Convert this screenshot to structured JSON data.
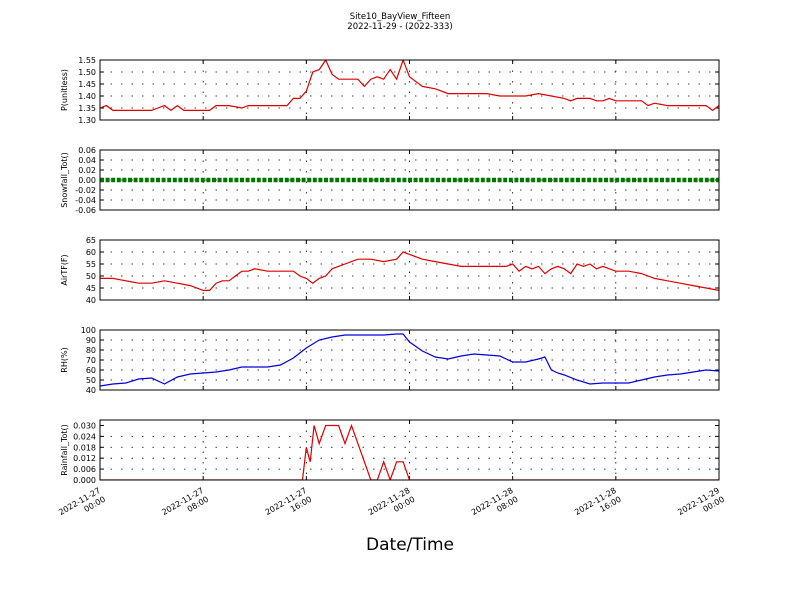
{
  "title": "Site10_BayView_Fifteen",
  "subtitle": "2022-11-29 - (2022-333)",
  "xlabel": "Date/Time",
  "x_ticks": [
    {
      "t": 0,
      "l1": "2022-11-27",
      "l2": "00:00"
    },
    {
      "t": 8,
      "l1": "2022-11-27",
      "l2": "08:00"
    },
    {
      "t": 16,
      "l1": "2022-11-27",
      "l2": "16:00"
    },
    {
      "t": 24,
      "l1": "2022-11-28",
      "l2": "00:00"
    },
    {
      "t": 32,
      "l1": "2022-11-28",
      "l2": "08:00"
    },
    {
      "t": 40,
      "l1": "2022-11-28",
      "l2": "16:00"
    },
    {
      "t": 48,
      "l1": "2022-11-29",
      "l2": "00:00"
    }
  ],
  "chart_data": [
    {
      "type": "line",
      "ylabel": "P(unitless)",
      "ylim": [
        1.3,
        1.55
      ],
      "yticks": [
        "1.30",
        "1.35",
        "1.40",
        "1.45",
        "1.50",
        "1.55"
      ],
      "color": "#dd0000",
      "grid": true,
      "x": [
        0,
        0.5,
        1,
        2,
        3,
        4,
        4.5,
        5,
        5.5,
        6,
        6.5,
        7,
        8,
        8.5,
        9,
        10,
        11,
        11.5,
        12,
        13,
        14,
        14.5,
        15,
        15.5,
        16,
        16.5,
        17,
        17.5,
        18,
        18.5,
        19,
        19.5,
        20,
        20.5,
        21,
        21.5,
        22,
        22.5,
        23,
        23.5,
        24,
        25,
        26,
        27,
        28,
        29,
        30,
        31,
        32,
        33,
        34,
        35,
        36,
        36.5,
        37,
        37.5,
        38,
        38.5,
        39,
        39.5,
        40,
        41,
        42,
        42.5,
        43,
        44,
        45,
        46,
        47,
        47.5,
        48
      ],
      "y": [
        1.35,
        1.36,
        1.34,
        1.34,
        1.34,
        1.34,
        1.35,
        1.36,
        1.34,
        1.36,
        1.34,
        1.34,
        1.34,
        1.34,
        1.36,
        1.36,
        1.35,
        1.36,
        1.36,
        1.36,
        1.36,
        1.36,
        1.39,
        1.39,
        1.42,
        1.5,
        1.51,
        1.55,
        1.49,
        1.47,
        1.47,
        1.47,
        1.47,
        1.44,
        1.47,
        1.48,
        1.47,
        1.51,
        1.47,
        1.55,
        1.48,
        1.44,
        1.43,
        1.41,
        1.41,
        1.41,
        1.41,
        1.4,
        1.4,
        1.4,
        1.41,
        1.4,
        1.39,
        1.38,
        1.39,
        1.39,
        1.39,
        1.38,
        1.38,
        1.39,
        1.38,
        1.38,
        1.38,
        1.36,
        1.37,
        1.36,
        1.36,
        1.36,
        1.36,
        1.34,
        1.36
      ]
    },
    {
      "type": "line",
      "ylabel": "Snowfall_Tot()",
      "ylim": [
        -0.06,
        0.06
      ],
      "yticks": [
        "-0.06",
        "-0.04",
        "-0.02",
        "0.00",
        "0.02",
        "0.04",
        "0.06"
      ],
      "color": "#007700",
      "grid": true,
      "x": [
        0,
        48
      ],
      "y": [
        0,
        0
      ],
      "marker": true
    },
    {
      "type": "line",
      "ylabel": "AirTF(F)",
      "ylim": [
        40,
        65
      ],
      "yticks": [
        "40",
        "45",
        "50",
        "55",
        "60",
        "65"
      ],
      "color": "#dd0000",
      "grid": true,
      "x": [
        0,
        1,
        2,
        3,
        4,
        5,
        6,
        7,
        8,
        8.5,
        9,
        9.5,
        10,
        10.5,
        11,
        11.5,
        12,
        13,
        14,
        15,
        15.5,
        16,
        16.5,
        17,
        17.5,
        18,
        19,
        20,
        21,
        22,
        23,
        23.5,
        24,
        25,
        26,
        27,
        28,
        29,
        30,
        31,
        31.5,
        32,
        32.5,
        33,
        33.5,
        34,
        34.5,
        35,
        35.5,
        36,
        36.5,
        37,
        37.5,
        38,
        38.5,
        39,
        40,
        41,
        42,
        43,
        44,
        45,
        46,
        47,
        48
      ],
      "y": [
        49,
        49,
        48,
        47,
        47,
        48,
        47,
        46,
        44,
        44,
        47,
        48,
        48,
        50,
        52,
        52,
        53,
        52,
        52,
        52,
        50,
        49,
        47,
        49,
        50,
        53,
        55,
        57,
        57,
        56,
        57,
        60,
        59,
        57,
        56,
        55,
        54,
        54,
        54,
        54,
        54,
        55,
        52,
        54,
        53,
        54,
        51,
        53,
        54,
        53,
        51,
        55,
        54,
        55,
        53,
        54,
        52,
        52,
        51,
        49,
        48,
        47,
        46,
        45,
        44
      ]
    },
    {
      "type": "line",
      "ylabel": "RH(%)",
      "ylim": [
        40,
        100
      ],
      "yticks": [
        "40",
        "50",
        "60",
        "70",
        "80",
        "90",
        "100"
      ],
      "color": "#0000dd",
      "grid": true,
      "x": [
        0,
        1,
        2,
        3,
        4,
        5,
        6,
        7,
        8,
        9,
        10,
        11,
        12,
        13,
        14,
        15,
        16,
        17,
        18,
        19,
        20,
        21,
        22,
        23,
        23.5,
        24,
        25,
        26,
        27,
        28,
        29,
        30,
        31,
        32,
        33,
        34,
        34.5,
        35,
        35.5,
        36,
        37,
        38,
        39,
        40,
        41,
        42,
        43,
        44,
        45,
        46,
        47,
        48
      ],
      "y": [
        44,
        46,
        47,
        51,
        52,
        46,
        53,
        56,
        57,
        58,
        60,
        63,
        63,
        63,
        65,
        72,
        82,
        90,
        93,
        95,
        95,
        95,
        95,
        96,
        96,
        88,
        79,
        73,
        71,
        74,
        76,
        75,
        74,
        68,
        68,
        71,
        73,
        60,
        57,
        55,
        50,
        46,
        47,
        47,
        47,
        50,
        53,
        55,
        56,
        58,
        60,
        59
      ]
    },
    {
      "type": "line",
      "ylabel": "Rainfall_Tot()",
      "ylim": [
        0,
        0.033
      ],
      "yticks": [
        "0.000",
        "0.006",
        "0.012",
        "0.018",
        "0.024",
        "0.030"
      ],
      "color": "#dd0000",
      "grid": true,
      "x": [
        0,
        15.7,
        16,
        16.3,
        16.6,
        17,
        17.5,
        18,
        18.5,
        19,
        19.5,
        20,
        20.5,
        21,
        21.5,
        22,
        22.5,
        23,
        23.5,
        24,
        24.5,
        25,
        48
      ],
      "y": [
        0,
        0,
        0.018,
        0.01,
        0.03,
        0.02,
        0.03,
        0.03,
        0.03,
        0.02,
        0.03,
        0.02,
        0.01,
        0.0,
        0.0,
        0.01,
        0.0,
        0.01,
        0.01,
        0.0,
        0.0,
        0.0,
        0.0
      ]
    }
  ]
}
